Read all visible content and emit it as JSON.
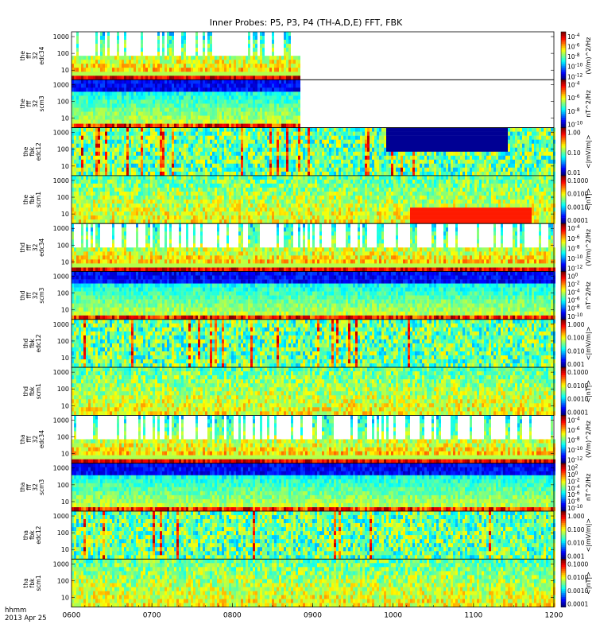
{
  "title": "Inner Probes: P5, P3, P4 (TH-A,D,E) FFT, FBK",
  "footer": {
    "label": "hhmm",
    "date": "2013 Apr 25"
  },
  "chart_data": {
    "type": "heatmap",
    "x": {
      "tick_labels": [
        "0600",
        "0700",
        "0800",
        "0900",
        "1000",
        "1100",
        "1200"
      ]
    },
    "panels": [
      {
        "name": "the_fff_32_edc34",
        "ylabel": [
          "the",
          "fff",
          "32",
          "edc34"
        ],
        "yticks": [
          "1000",
          "100",
          "10"
        ],
        "cbar_unit": "(V/m)^2/Hz",
        "cbar_ticks": [
          "10^-4",
          "10^-6",
          "10^-8",
          "10^-10",
          "10^-12"
        ],
        "kind": "fff_e",
        "coverage_end_hhmm": "0850"
      },
      {
        "name": "the_fff_32_scm3",
        "ylabel": [
          "the",
          "fff",
          "32",
          "scm3"
        ],
        "yticks": [
          "1000",
          "100",
          "10"
        ],
        "cbar_unit": "nT^2/Hz",
        "cbar_ticks": [
          "10^-4",
          "10^-6",
          "10^-8",
          "10^-10"
        ],
        "kind": "fff_b",
        "coverage_end_hhmm": "0850"
      },
      {
        "name": "the_fbk_edc12",
        "ylabel": [
          "the",
          "fbk",
          "edc12"
        ],
        "yticks": [
          "1000",
          "100",
          "10"
        ],
        "cbar_unit": "<|mV/m|>",
        "cbar_ticks": [
          "1.00",
          "0.10",
          "0.01"
        ],
        "kind": "fbk_e"
      },
      {
        "name": "the_fbk_scm1",
        "ylabel": [
          "the",
          "fbk",
          "scm1"
        ],
        "yticks": [
          "1000",
          "100",
          "10"
        ],
        "cbar_unit": "<|nT|>",
        "cbar_ticks": [
          "0.1000",
          "0.0100",
          "0.0010",
          "0.0001"
        ],
        "kind": "fbk_b"
      },
      {
        "name": "thd_fff_32_edc34",
        "ylabel": [
          "thd",
          "fff",
          "32",
          "edc34"
        ],
        "yticks": [
          "1000",
          "100",
          "10"
        ],
        "cbar_unit": "(V/m)^2/Hz",
        "cbar_ticks": [
          "10^-4",
          "10^-6",
          "10^-8",
          "10^-10",
          "10^-12"
        ],
        "kind": "fff_e"
      },
      {
        "name": "thd_fff_32_scm3",
        "ylabel": [
          "thd",
          "fff",
          "32",
          "scm3"
        ],
        "yticks": [
          "1000",
          "100",
          "10"
        ],
        "cbar_unit": "nT^2/Hz",
        "cbar_ticks": [
          "10^0",
          "10^-2",
          "10^-4",
          "10^-6",
          "10^-8",
          "10^-10"
        ],
        "kind": "fff_b"
      },
      {
        "name": "thd_fbk_edc12",
        "ylabel": [
          "thd",
          "fbk",
          "edc12"
        ],
        "yticks": [
          "1000",
          "100",
          "10"
        ],
        "cbar_unit": "<|mV/m|>",
        "cbar_ticks": [
          "1.000",
          "0.100",
          "0.010",
          "0.001"
        ],
        "kind": "fbk_e"
      },
      {
        "name": "thd_fbk_scm1",
        "ylabel": [
          "thd",
          "fbk",
          "scm1"
        ],
        "yticks": [
          "1000",
          "100",
          "10"
        ],
        "cbar_unit": "<|nT|>",
        "cbar_ticks": [
          "0.1000",
          "0.0100",
          "0.0010",
          "0.0001"
        ],
        "kind": "fbk_b"
      },
      {
        "name": "tha_fff_32_edc34",
        "ylabel": [
          "tha",
          "fff",
          "32",
          "edc34"
        ],
        "yticks": [
          "1000",
          "100",
          "10"
        ],
        "cbar_unit": "(V/m)^2/Hz",
        "cbar_ticks": [
          "10^-4",
          "10^-6",
          "10^-8",
          "10^-10",
          "10^-12"
        ],
        "kind": "fff_e"
      },
      {
        "name": "tha_fff_32_scm3",
        "ylabel": [
          "tha",
          "fff",
          "32",
          "scm3"
        ],
        "yticks": [
          "1000",
          "100",
          "10"
        ],
        "cbar_unit": "nT^2/Hz",
        "cbar_ticks": [
          "10^2",
          "10^0",
          "10^-2",
          "10^-4",
          "10^-6",
          "10^-8",
          "10^-10"
        ],
        "kind": "fff_b"
      },
      {
        "name": "tha_fbk_edc12",
        "ylabel": [
          "tha",
          "fbk",
          "edc12"
        ],
        "yticks": [
          "1000",
          "100",
          "10"
        ],
        "cbar_unit": "<|mV/m|>",
        "cbar_ticks": [
          "1.000",
          "0.100",
          "0.010",
          "0.001"
        ],
        "kind": "fbk_e"
      },
      {
        "name": "tha_fbk_scm1",
        "ylabel": [
          "tha",
          "fbk",
          "scm1"
        ],
        "yticks": [
          "1000",
          "100",
          "10"
        ],
        "cbar_unit": "<|nT|>",
        "cbar_ticks": [
          "0.1000",
          "0.0100",
          "0.0010",
          "0.0001"
        ],
        "kind": "fbk_b"
      }
    ]
  }
}
